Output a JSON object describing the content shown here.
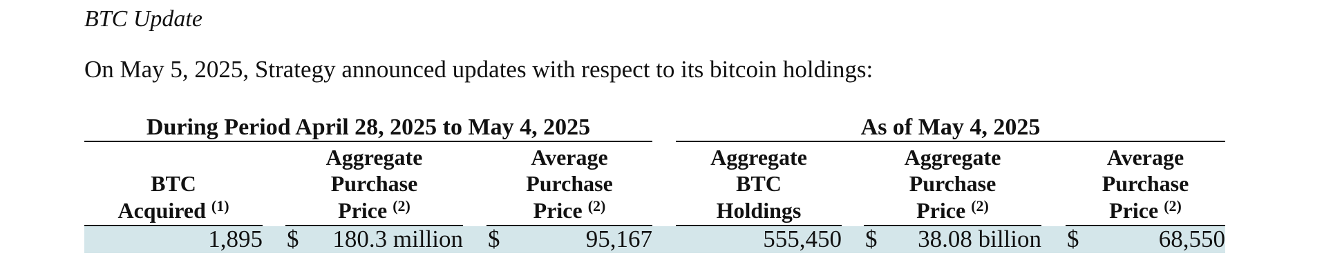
{
  "section": {
    "heading": "BTC Update",
    "intro": "On May 5, 2025, Strategy announced updates with respect to its bitcoin holdings:"
  },
  "table": {
    "group_left": "During Period April 28, 2025 to May 4, 2025",
    "group_right": "As of May 4, 2025",
    "columns": [
      {
        "lines": [
          "BTC",
          "Acquired"
        ],
        "note": "(1)"
      },
      {
        "lines": [
          "Aggregate",
          "Purchase",
          "Price"
        ],
        "note": "(2)"
      },
      {
        "lines": [
          "Average",
          "Purchase",
          "Price"
        ],
        "note": "(2)"
      },
      {
        "lines": [
          "Aggregate",
          "BTC",
          "Holdings"
        ],
        "note": ""
      },
      {
        "lines": [
          "Aggregate",
          "Purchase",
          "Price"
        ],
        "note": "(2)"
      },
      {
        "lines": [
          "Average",
          "Purchase",
          "Price"
        ],
        "note": "(2)"
      }
    ],
    "row": {
      "btc_acquired": "1,895",
      "period_aggregate_currency": "$",
      "period_aggregate_price": "180.3 million",
      "period_average_currency": "$",
      "period_average_price": "95,167",
      "btc_holdings": "555,450",
      "total_aggregate_currency": "$",
      "total_aggregate_price": "38.08 billion",
      "total_average_currency": "$",
      "total_average_price": "68,550"
    }
  }
}
